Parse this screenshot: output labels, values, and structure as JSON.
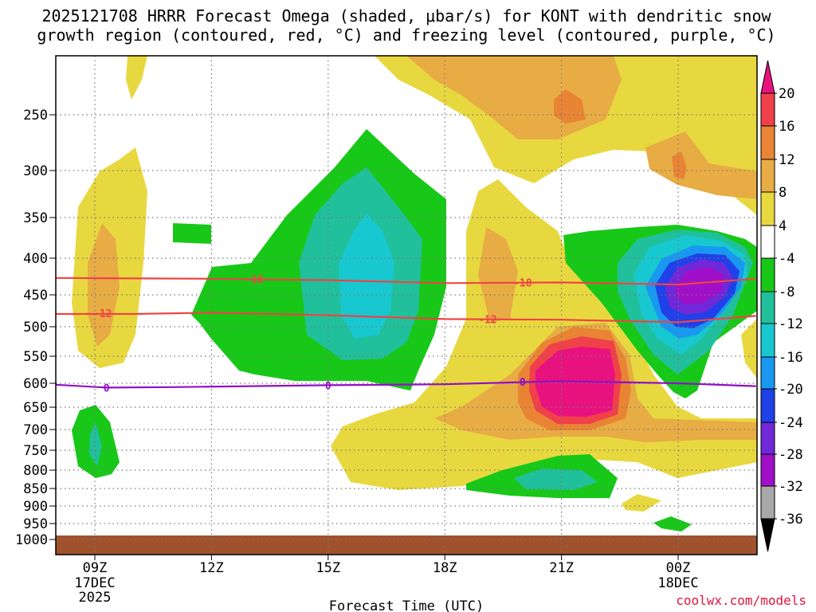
{
  "chart_data": {
    "type": "contour-timeheight",
    "title_line1": "2025121708 HRRR Forecast Omega (shaded, μbar/s) for KONT with dendritic snow",
    "title_line2": "growth region (contoured, red, °C) and freezing level (contoured, purple, °C)",
    "xlabel": "Forecast Time (UTC)",
    "credit": "coolwx.com/models",
    "x_ticks": [
      {
        "label": "09Z",
        "sub1": "17DEC",
        "sub2": "2025",
        "hour": 9
      },
      {
        "label": "12Z",
        "sub1": "",
        "sub2": "",
        "hour": 12
      },
      {
        "label": "15Z",
        "sub1": "",
        "sub2": "",
        "hour": 15
      },
      {
        "label": "18Z",
        "sub1": "",
        "sub2": "",
        "hour": 18
      },
      {
        "label": "21Z",
        "sub1": "",
        "sub2": "",
        "hour": 21
      },
      {
        "label": "00Z",
        "sub1": "18DEC",
        "sub2": "",
        "hour": 24
      }
    ],
    "x_range_hours": [
      8,
      26
    ],
    "y_ticks": [
      250,
      300,
      350,
      400,
      450,
      500,
      550,
      600,
      650,
      700,
      750,
      800,
      850,
      900,
      950,
      1000
    ],
    "y_range_hPa": [
      200,
      1000
    ],
    "surface_level_hPa": 975,
    "colorbar": {
      "levels": [
        -36,
        -32,
        -28,
        -24,
        -20,
        -16,
        -12,
        -8,
        -4,
        4,
        8,
        12,
        16,
        20
      ],
      "labels": [
        "20",
        "16",
        "12",
        "8",
        "4",
        "-4",
        "-8",
        "-12",
        "-16",
        "-20",
        "-24",
        "-28",
        "-32",
        "-36"
      ],
      "colors": {
        "gt20": "#e8127e",
        "16_20": "#f0404a",
        "12_16": "#e88434",
        "8_12": "#e8ac44",
        "4_8": "#e8d840",
        "m4_4": "#ffffff",
        "m8_m4": "#18c818",
        "m12_m8": "#20c09c",
        "m16_m12": "#18c8d0",
        "m20_m16": "#1898f0",
        "m24_m20": "#2040e8",
        "m28_m24": "#7028d8",
        "m32_m28": "#a010c8",
        "m36_m32": "#a8a8a8",
        "lt36": "#000000"
      }
    },
    "contours": [
      {
        "name": "dgz-upper",
        "label": "-18",
        "color": "#ee4444",
        "points": [
          [
            8,
            427
          ],
          [
            12,
            428
          ],
          [
            15,
            430
          ],
          [
            18,
            434
          ],
          [
            21,
            433
          ],
          [
            24,
            436
          ],
          [
            26,
            428
          ]
        ]
      },
      {
        "name": "dgz-lower",
        "label": "-12",
        "color": "#ee4444",
        "points": [
          [
            8,
            480
          ],
          [
            10,
            480
          ],
          [
            12,
            478
          ],
          [
            15,
            482
          ],
          [
            18,
            488
          ],
          [
            21,
            489
          ],
          [
            24,
            493
          ],
          [
            26,
            483
          ]
        ]
      },
      {
        "name": "freezing-level",
        "label": "0",
        "color": "#9010c8",
        "points": [
          [
            8,
            603
          ],
          [
            9.3,
            609
          ],
          [
            11,
            608
          ],
          [
            15,
            604
          ],
          [
            18,
            602
          ],
          [
            21,
            596
          ],
          [
            24,
            600
          ],
          [
            26,
            606
          ]
        ]
      }
    ],
    "contour_labels": [
      {
        "text": "-18",
        "hour": 13.1,
        "p": 428,
        "color": "#ee4444"
      },
      {
        "text": "-18",
        "hour": 20.0,
        "p": 433,
        "color": "#ee4444"
      },
      {
        "text": "-12",
        "hour": 9.2,
        "p": 479,
        "color": "#ee4444"
      },
      {
        "text": "-12",
        "hour": 19.1,
        "p": 488,
        "color": "#ee4444"
      },
      {
        "text": "0",
        "hour": 9.3,
        "p": 609,
        "color": "#9010c8"
      },
      {
        "text": "0",
        "hour": 15.0,
        "p": 604,
        "color": "#9010c8"
      },
      {
        "text": "0",
        "hour": 20.0,
        "p": 597,
        "color": "#9010c8"
      }
    ]
  }
}
